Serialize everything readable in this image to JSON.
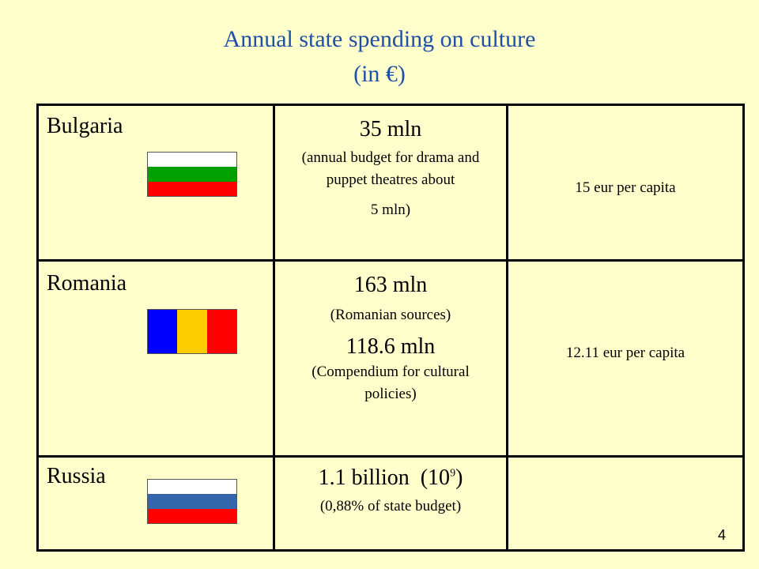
{
  "title": {
    "line1": "Annual state spending on culture",
    "line2": "(in €)"
  },
  "rows": [
    {
      "country": "Bulgaria",
      "flag_colors": [
        "#FFFFFF",
        "#00A000",
        "#FF0000"
      ],
      "amount": "35 mln",
      "note": "(annual budget for drama and puppet theatres about",
      "note2": "5 mln)",
      "per_capita": "15 eur per capita"
    },
    {
      "country": "Romania",
      "flag_colors": [
        "#0000FF",
        "#FFCC00",
        "#FF0000"
      ],
      "amount": "163 mln",
      "note": "(Romanian sources)",
      "amount2": "118.6 mln",
      "note2": "(Compendium for cultural policies)",
      "per_capita": "12.11 eur per capita"
    },
    {
      "country": "Russia",
      "flag_colors": [
        "#FFFFFF",
        "#3366AA",
        "#FF0000"
      ],
      "amount": "1.1 billion",
      "amount_exp_open": "(10",
      "amount_exp_sup": "9",
      "amount_exp_close": ")",
      "note": "(0,88% of state budget)",
      "per_capita": ""
    }
  ],
  "slide_number": "4"
}
